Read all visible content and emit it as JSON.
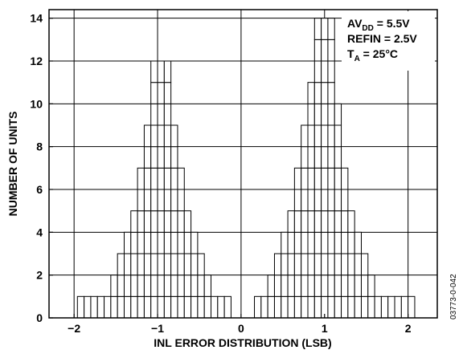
{
  "chart_data": {
    "type": "bar",
    "title": "",
    "xlabel": "INL ERROR DISTRIBUTION (LSB)",
    "ylabel": "NUMBER OF UNITS",
    "xlim": [
      -2.3,
      2.35
    ],
    "ylim": [
      0,
      14.4
    ],
    "x_ticks": [
      -2,
      -1,
      0,
      1,
      2
    ],
    "x_tick_labels": [
      "−2",
      "−1",
      "0",
      "1",
      "2"
    ],
    "y_ticks": [
      0,
      2,
      4,
      6,
      8,
      10,
      12,
      14
    ],
    "y_tick_labels": [
      "0",
      "2",
      "4",
      "6",
      "8",
      "10",
      "12",
      "14"
    ],
    "grid": true,
    "series": [
      {
        "values": [
          {
            "x": -1.92,
            "count": 1
          },
          {
            "x": -1.84,
            "count": 1
          },
          {
            "x": -1.76,
            "count": 1
          },
          {
            "x": -1.68,
            "count": 1
          },
          {
            "x": -1.6,
            "count": 1
          },
          {
            "x": -1.52,
            "count": 2
          },
          {
            "x": -1.44,
            "count": 3
          },
          {
            "x": -1.36,
            "count": 4
          },
          {
            "x": -1.28,
            "count": 5
          },
          {
            "x": -1.2,
            "count": 7
          },
          {
            "x": -1.12,
            "count": 9
          },
          {
            "x": -1.04,
            "count": 12
          },
          {
            "x": -0.96,
            "count": 12
          },
          {
            "x": -0.88,
            "count": 12
          },
          {
            "x": -0.8,
            "count": 9
          },
          {
            "x": -0.72,
            "count": 7
          },
          {
            "x": -0.64,
            "count": 5
          },
          {
            "x": -0.56,
            "count": 4
          },
          {
            "x": -0.48,
            "count": 3
          },
          {
            "x": -0.4,
            "count": 2
          },
          {
            "x": -0.32,
            "count": 1
          },
          {
            "x": -0.24,
            "count": 1
          },
          {
            "x": -0.16,
            "count": 1
          },
          {
            "x": 0.2,
            "count": 1
          },
          {
            "x": 0.28,
            "count": 1
          },
          {
            "x": 0.36,
            "count": 2
          },
          {
            "x": 0.44,
            "count": 3
          },
          {
            "x": 0.52,
            "count": 4
          },
          {
            "x": 0.6,
            "count": 5
          },
          {
            "x": 0.68,
            "count": 7
          },
          {
            "x": 0.76,
            "count": 9
          },
          {
            "x": 0.84,
            "count": 11
          },
          {
            "x": 0.92,
            "count": 14
          },
          {
            "x": 1.0,
            "count": 14
          },
          {
            "x": 1.08,
            "count": 14
          },
          {
            "x": 1.16,
            "count": 10
          },
          {
            "x": 1.24,
            "count": 7
          },
          {
            "x": 1.32,
            "count": 5
          },
          {
            "x": 1.4,
            "count": 4
          },
          {
            "x": 1.48,
            "count": 3
          },
          {
            "x": 1.56,
            "count": 2
          },
          {
            "x": 1.64,
            "count": 1
          },
          {
            "x": 1.72,
            "count": 1
          },
          {
            "x": 1.8,
            "count": 1
          },
          {
            "x": 1.88,
            "count": 1
          },
          {
            "x": 1.96,
            "count": 1
          },
          {
            "x": 2.04,
            "count": 1
          }
        ]
      }
    ],
    "bin_width": 0.08,
    "annotations": {
      "line1_main": "AV",
      "line1_sub": "DD",
      "line1_rest": " = 5.5V",
      "line2": "REFIN = 2.5V",
      "line3_main": "T",
      "line3_sub": "A",
      "line3_rest": " = 25°C"
    },
    "side_code": "03773-0-042"
  },
  "colors": {
    "bar_fill": "#ffffff",
    "bar_stroke": "#000000",
    "grid": "#000000",
    "axis": "#000000"
  }
}
